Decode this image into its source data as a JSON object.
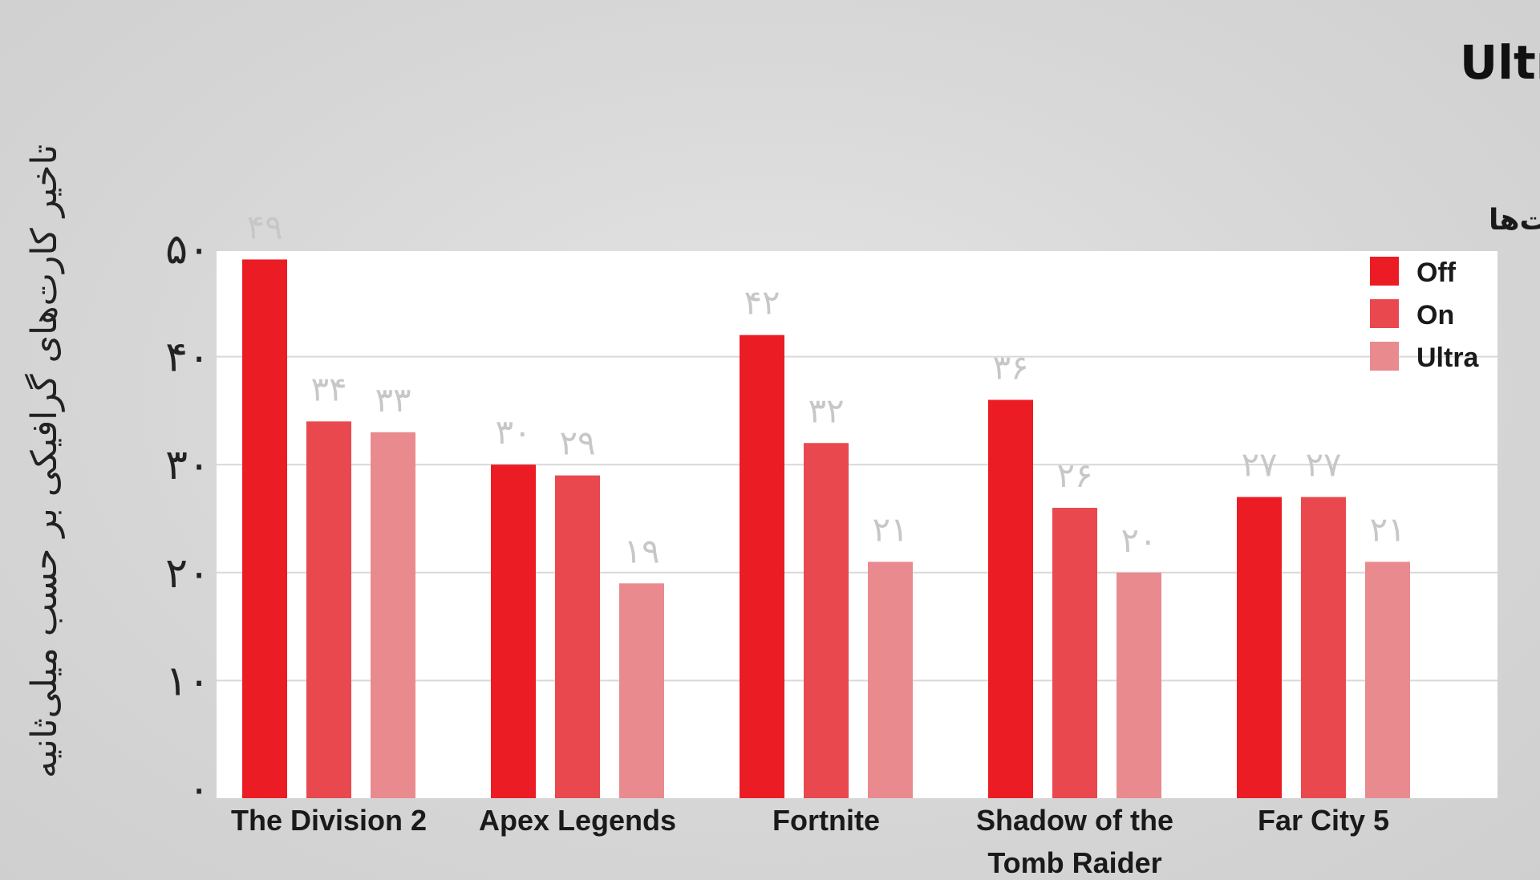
{
  "chart_data": {
    "type": "bar",
    "title": "تست زمان تاخیر در حالت‌های مختلف Ultra-Low Latency",
    "ylabel": "تاخیر کارت‌های گرافیکی بر حسب میلی‌ثانیه",
    "xlabel": "",
    "ylim": [
      0,
      50
    ],
    "yticks": [
      0,
      10,
      20,
      30,
      40,
      50
    ],
    "ytick_labels": [
      "۰",
      "۱۰",
      "۲۰",
      "۳۰",
      "۴۰",
      "۵۰"
    ],
    "grid": true,
    "categories": [
      [
        "The Division 2"
      ],
      [
        "Apex Legends"
      ],
      [
        "Fortnite"
      ],
      [
        "Shadow of the",
        "Tomb Raider"
      ],
      [
        "Far City 5"
      ]
    ],
    "series": [
      {
        "name": "Off",
        "color": "#ec1c24",
        "values": [
          49,
          30,
          42,
          36,
          27
        ],
        "labels": [
          "۴۹",
          "۳۰",
          "۴۲",
          "۳۶",
          "۲۷"
        ]
      },
      {
        "name": "On",
        "color": "#e9484e",
        "values": [
          34,
          29,
          32,
          26,
          27
        ],
        "labels": [
          "۳۴",
          "۲۹",
          "۳۲",
          "۲۶",
          "۲۷"
        ]
      },
      {
        "name": "Ultra",
        "color": "#e98a8f",
        "values": [
          33,
          19,
          21,
          20,
          21
        ],
        "labels": [
          "۳۳",
          "۱۹",
          "۲۱",
          "۲۰",
          "۲۱"
        ]
      }
    ],
    "legend": {
      "title": "حالت‌ها",
      "position": "top-right"
    },
    "colors": {
      "plot_background": "#ffffff",
      "grid": "#d9d9d9",
      "data_label": "#c7c7c7"
    }
  }
}
